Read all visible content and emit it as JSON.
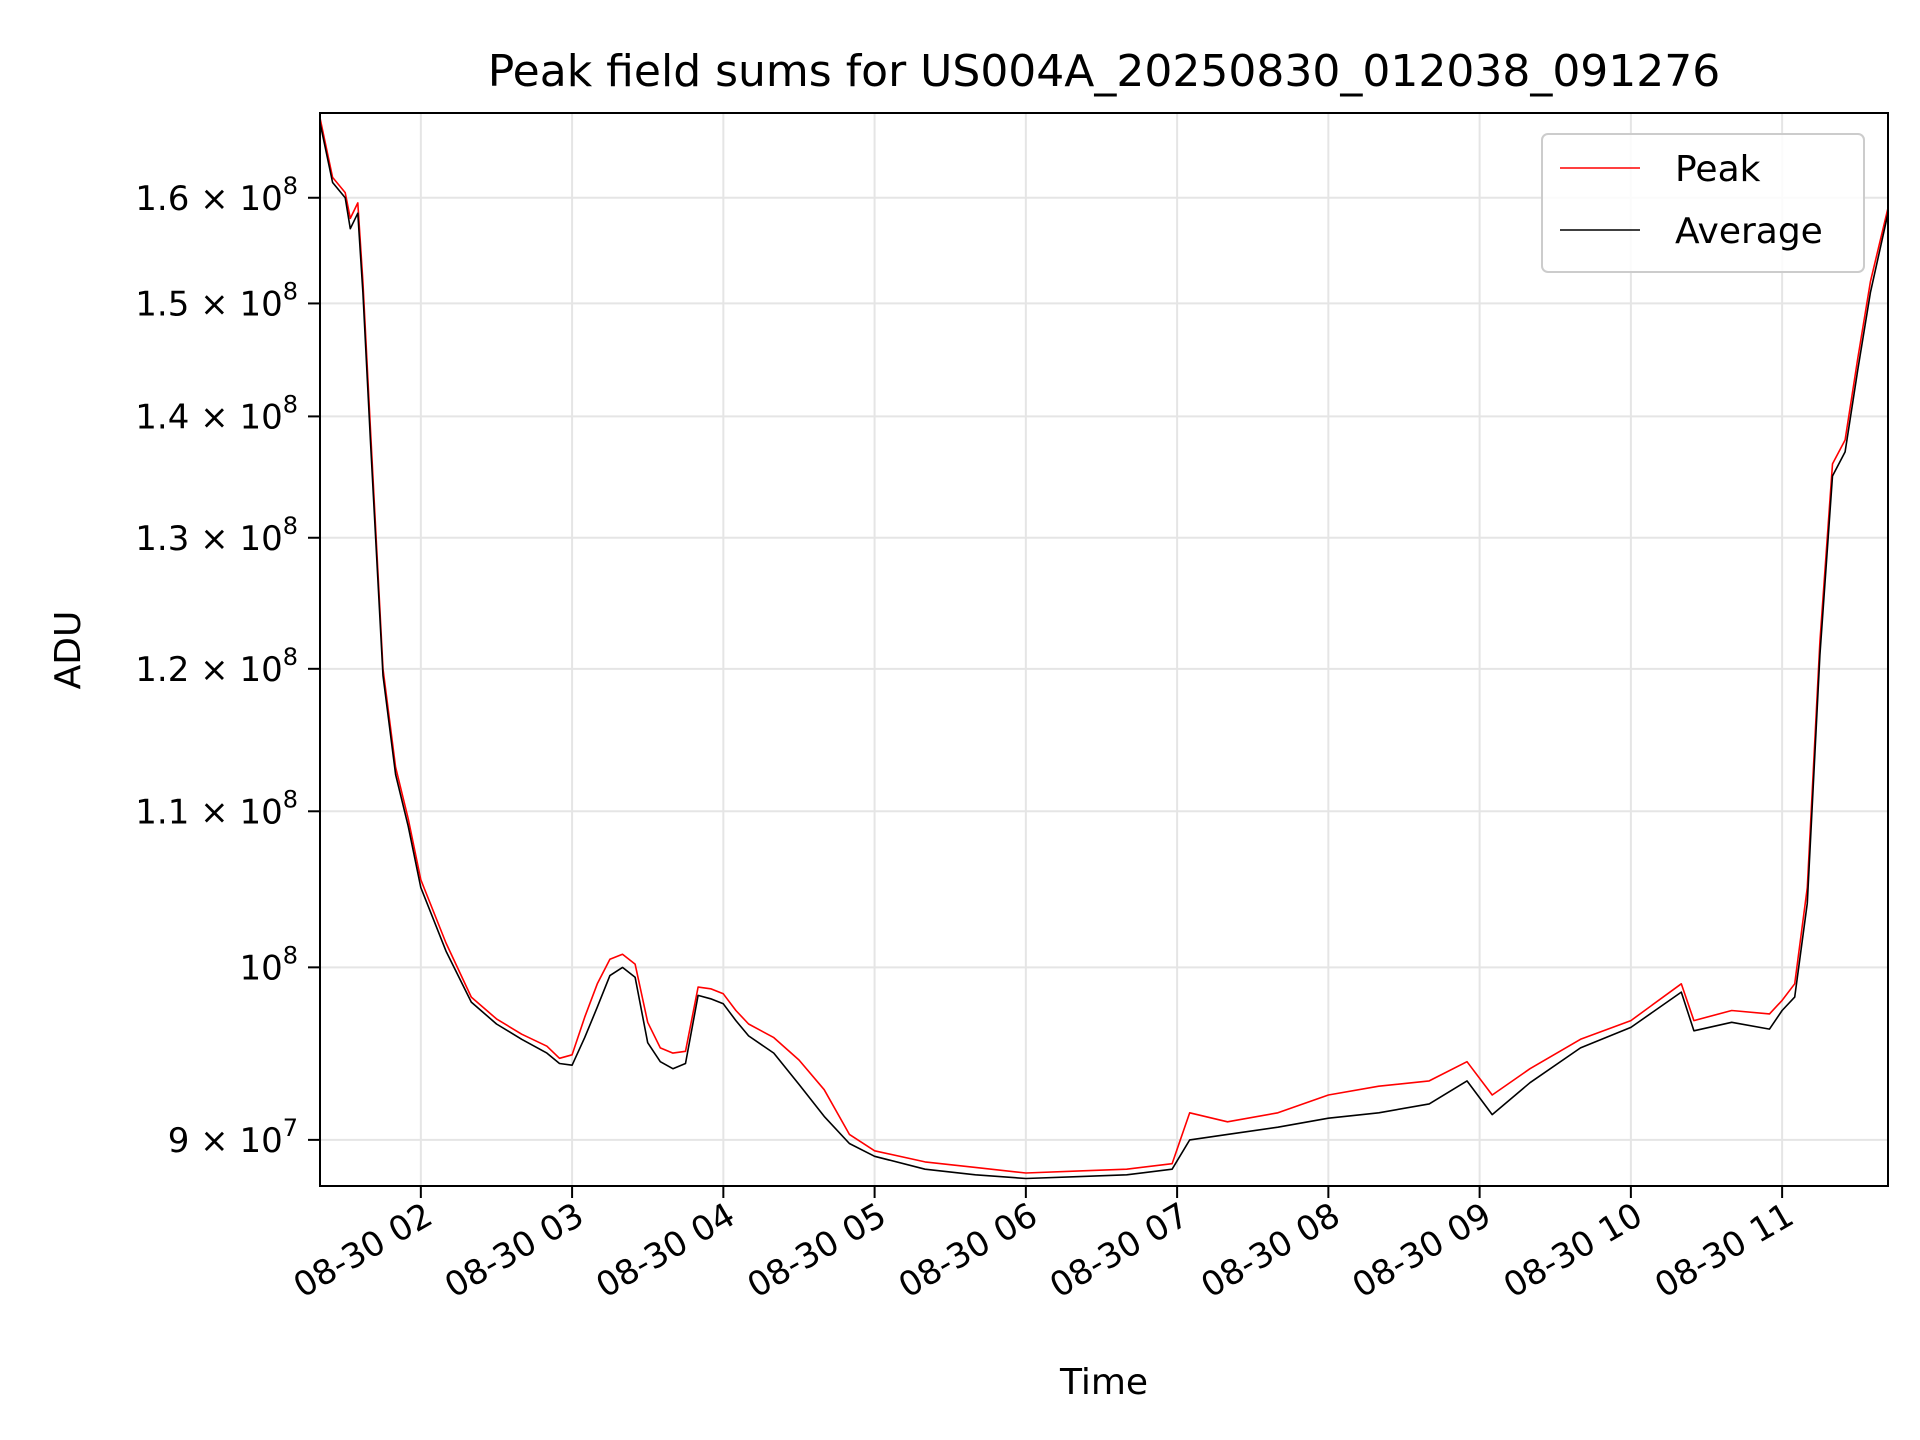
{
  "chart_data": {
    "type": "line",
    "title": "Peak field sums for US004A_20250830_012038_091276",
    "xlabel": "Time",
    "ylabel": "ADU",
    "xlim": [
      "08-30 01:20",
      "08-30 11:42"
    ],
    "ylim": [
      87500000,
      168500000
    ],
    "y_scale": "log",
    "grid": true,
    "legend_position": "top-right",
    "x_ticks": [
      {
        "t": "08-30 02:00",
        "label": "08-30 02"
      },
      {
        "t": "08-30 03:00",
        "label": "08-30 03"
      },
      {
        "t": "08-30 04:00",
        "label": "08-30 04"
      },
      {
        "t": "08-30 05:00",
        "label": "08-30 05"
      },
      {
        "t": "08-30 06:00",
        "label": "08-30 06"
      },
      {
        "t": "08-30 07:00",
        "label": "08-30 07"
      },
      {
        "t": "08-30 08:00",
        "label": "08-30 08"
      },
      {
        "t": "08-30 09:00",
        "label": "08-30 09"
      },
      {
        "t": "08-30 10:00",
        "label": "08-30 10"
      },
      {
        "t": "08-30 11:00",
        "label": "08-30 11"
      }
    ],
    "y_ticks": [
      {
        "value": 90000000,
        "mantissa": "9",
        "exponent": "7"
      },
      {
        "value": 100000000,
        "mantissa": "",
        "exponent": "8"
      },
      {
        "value": 110000000,
        "mantissa": "1.1",
        "exponent": "8"
      },
      {
        "value": 120000000,
        "mantissa": "1.2",
        "exponent": "8"
      },
      {
        "value": 130000000,
        "mantissa": "1.3",
        "exponent": "8"
      },
      {
        "value": 140000000,
        "mantissa": "1.4",
        "exponent": "8"
      },
      {
        "value": 150000000,
        "mantissa": "1.5",
        "exponent": "8"
      },
      {
        "value": 160000000,
        "mantissa": "1.6",
        "exponent": "8"
      }
    ],
    "x": [
      "08-30 01:20",
      "08-30 01:25",
      "08-30 01:30",
      "08-30 01:32",
      "08-30 01:35",
      "08-30 01:37",
      "08-30 01:40",
      "08-30 01:45",
      "08-30 01:50",
      "08-30 01:55",
      "08-30 02:00",
      "08-30 02:10",
      "08-30 02:20",
      "08-30 02:30",
      "08-30 02:40",
      "08-30 02:50",
      "08-30 02:55",
      "08-30 03:00",
      "08-30 03:05",
      "08-30 03:10",
      "08-30 03:15",
      "08-30 03:20",
      "08-30 03:25",
      "08-30 03:30",
      "08-30 03:35",
      "08-30 03:40",
      "08-30 03:45",
      "08-30 03:50",
      "08-30 03:55",
      "08-30 04:00",
      "08-30 04:05",
      "08-30 04:10",
      "08-30 04:20",
      "08-30 04:30",
      "08-30 04:40",
      "08-30 04:50",
      "08-30 05:00",
      "08-30 05:20",
      "08-30 05:40",
      "08-30 06:00",
      "08-30 06:20",
      "08-30 06:40",
      "08-30 06:58",
      "08-30 07:05",
      "08-30 07:20",
      "08-30 07:40",
      "08-30 08:00",
      "08-30 08:20",
      "08-30 08:40",
      "08-30 08:55",
      "08-30 09:05",
      "08-30 09:20",
      "08-30 09:40",
      "08-30 10:00",
      "08-30 10:20",
      "08-30 10:25",
      "08-30 10:40",
      "08-30 10:55",
      "08-30 11:00",
      "08-30 11:05",
      "08-30 11:10",
      "08-30 11:15",
      "08-30 11:20",
      "08-30 11:25",
      "08-30 11:30",
      "08-30 11:35",
      "08-30 11:42"
    ],
    "series": [
      {
        "name": "Peak",
        "color": "#ff0000",
        "values": [
          168000000,
          162000000,
          160500000,
          158000000,
          159500000,
          152000000,
          139000000,
          120000000,
          113000000,
          109500000,
          105500000,
          101500000,
          98200000,
          96900000,
          96000000,
          95300000,
          94600000,
          94800000,
          97000000,
          99000000,
          100500000,
          100800000,
          100200000,
          96700000,
          95200000,
          94900000,
          95000000,
          98800000,
          98700000,
          98400000,
          97400000,
          96600000,
          95800000,
          94500000,
          92800000,
          90300000,
          89400000,
          88800000,
          88500000,
          88200000,
          88300000,
          88400000,
          88700000,
          91500000,
          91000000,
          91500000,
          92500000,
          93000000,
          93300000,
          94400000,
          92500000,
          94000000,
          95700000,
          96800000,
          99000000,
          96800000,
          97400000,
          97200000,
          98000000,
          99000000,
          105000000,
          122000000,
          136000000,
          138000000,
          145000000,
          152000000,
          159000000
        ]
      },
      {
        "name": "Average",
        "color": "#000000",
        "values": [
          167500000,
          161500000,
          160000000,
          157000000,
          158500000,
          151000000,
          138000000,
          119500000,
          112500000,
          109000000,
          105000000,
          101000000,
          97900000,
          96600000,
          95700000,
          94900000,
          94300000,
          94200000,
          95800000,
          97600000,
          99500000,
          100000000,
          99400000,
          95500000,
          94400000,
          94000000,
          94300000,
          98300000,
          98100000,
          97800000,
          96800000,
          95900000,
          94900000,
          93100000,
          91300000,
          89800000,
          89100000,
          88400000,
          88100000,
          87900000,
          88000000,
          88100000,
          88400000,
          90000000,
          90300000,
          90700000,
          91200000,
          91500000,
          92000000,
          93300000,
          91400000,
          93200000,
          95200000,
          96400000,
          98500000,
          96200000,
          96700000,
          96300000,
          97400000,
          98200000,
          104000000,
          121000000,
          135000000,
          137000000,
          144000000,
          151000000,
          158500000
        ]
      }
    ]
  }
}
